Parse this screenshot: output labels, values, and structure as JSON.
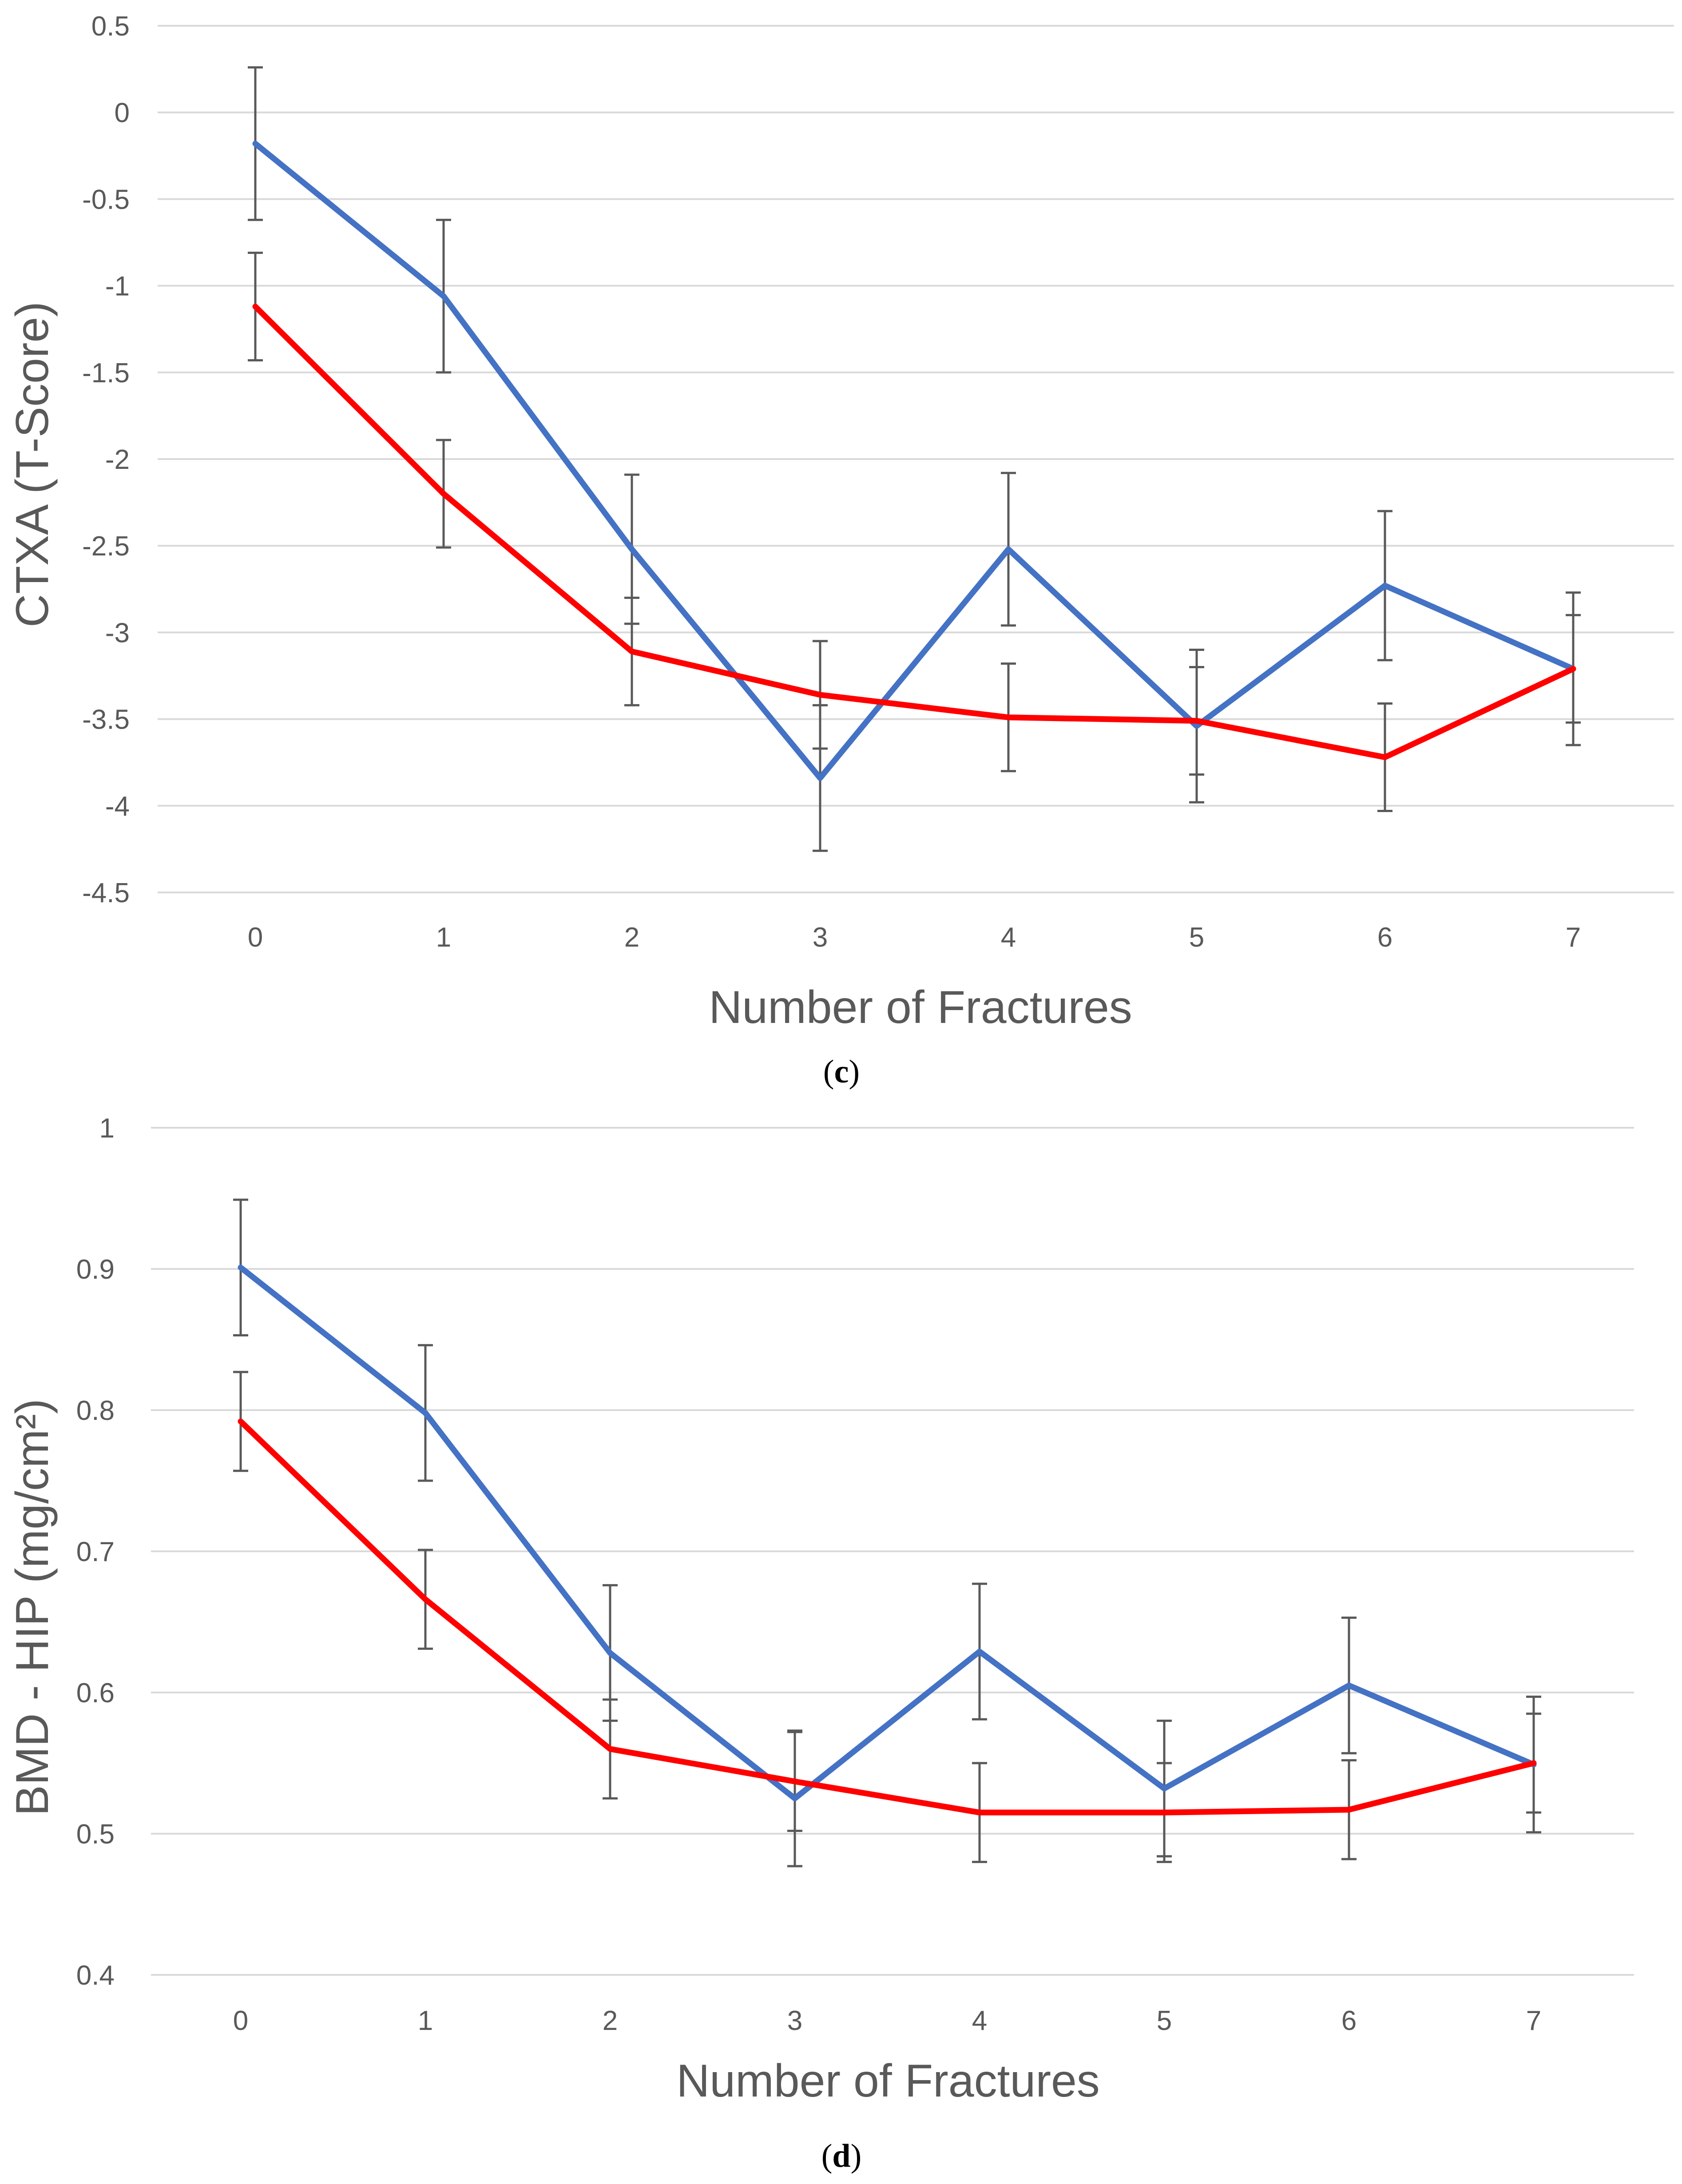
{
  "chart_data": [
    {
      "type": "line",
      "panel_label": "c",
      "xlabel": "Number of Fractures",
      "ylabel": "CTXA (T-Score)",
      "categories": [
        "0",
        "1",
        "2",
        "3",
        "4",
        "5",
        "6",
        "7"
      ],
      "yticks": [
        "0.5",
        "0",
        "-0.5",
        "-1",
        "-1.5",
        "-2",
        "-2.5",
        "-3",
        "-3.5",
        "-4",
        "-4.5"
      ],
      "ylim": [
        -4.5,
        0.5
      ],
      "grid": true,
      "series": [
        {
          "name": "blue series",
          "color": "#4472C4",
          "values": [
            -0.18,
            -1.06,
            -2.52,
            -3.84,
            -2.52,
            -3.54,
            -2.73,
            -3.21
          ],
          "errors": [
            0.44,
            0.44,
            0.43,
            0.42,
            0.44,
            0.44,
            0.43,
            0.31
          ]
        },
        {
          "name": "red series",
          "color": "#FF0000",
          "values": [
            -1.12,
            -2.2,
            -3.11,
            -3.36,
            -3.49,
            -3.51,
            -3.72,
            -3.21
          ],
          "errors": [
            0.31,
            0.31,
            0.31,
            0.31,
            0.31,
            0.31,
            0.31,
            0.44
          ]
        }
      ]
    },
    {
      "type": "line",
      "panel_label": "d",
      "xlabel": "Number of Fractures",
      "ylabel": "BMD - HIP (mg/cm²)",
      "categories": [
        "0",
        "1",
        "2",
        "3",
        "4",
        "5",
        "6",
        "7"
      ],
      "yticks": [
        "1",
        "0.9",
        "0.8",
        "0.7",
        "0.6",
        "0.5",
        "0.4"
      ],
      "ylim": [
        0.4,
        1.0
      ],
      "grid": true,
      "series": [
        {
          "name": "blue series",
          "color": "#4472C4",
          "values": [
            0.901,
            0.798,
            0.628,
            0.525,
            0.629,
            0.532,
            0.605,
            0.549
          ],
          "errors": [
            0.048,
            0.048,
            0.048,
            0.048,
            0.048,
            0.048,
            0.048,
            0.048
          ]
        },
        {
          "name": "red series",
          "color": "#FF0000",
          "values": [
            0.792,
            0.666,
            0.56,
            0.537,
            0.515,
            0.515,
            0.517,
            0.55
          ],
          "errors": [
            0.035,
            0.035,
            0.035,
            0.035,
            0.035,
            0.035,
            0.035,
            0.035
          ]
        }
      ]
    }
  ]
}
